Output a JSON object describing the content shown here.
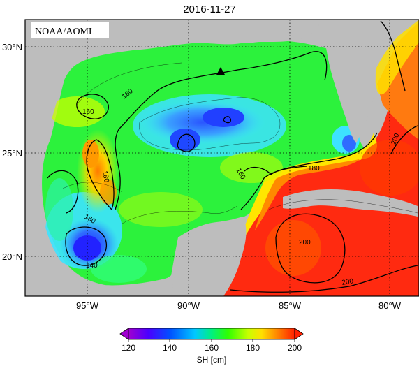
{
  "title": "2016-11-27",
  "credit": "NOAA/AOML",
  "lon_ticks": [
    "95°W",
    "90°W",
    "85°W",
    "80°W"
  ],
  "lat_ticks": [
    "30°N",
    "25°N",
    "20°N"
  ],
  "contour_labels": [
    "160",
    "160",
    "180",
    "140",
    "160",
    "180",
    "160",
    "200",
    "200",
    "200"
  ],
  "colorbar": {
    "ticks": [
      "120",
      "140",
      "160",
      "180",
      "200"
    ],
    "label": "SH [cm]",
    "colors": [
      "#a000d0",
      "#4a00ff",
      "#0050ff",
      "#00c8ff",
      "#00f080",
      "#30ff00",
      "#c8ff00",
      "#ffe000",
      "#ff8000",
      "#ff2000"
    ]
  },
  "marker": "triangle-marker"
}
